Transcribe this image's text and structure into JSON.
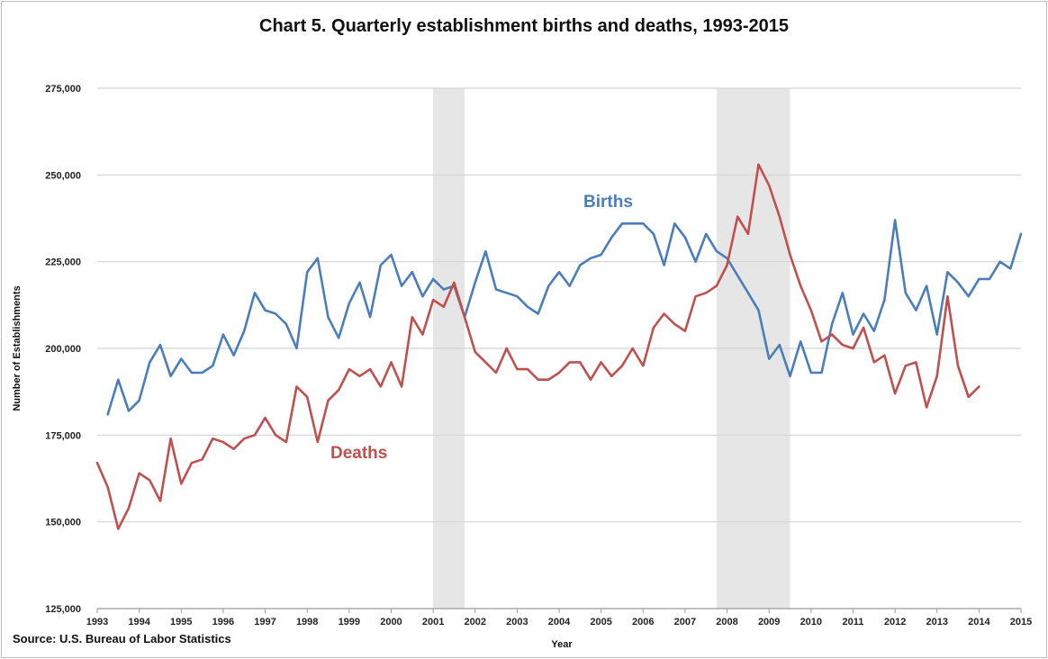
{
  "chart_data": {
    "type": "line",
    "title": "Chart 5. Quarterly establishment births and deaths, 1993-2015",
    "source": "Source: U.S. Bureau of Labor Statistics",
    "xlabel": "Year",
    "ylabel": "Number of Establishments",
    "ylim": [
      125000,
      275000
    ],
    "yticks": [
      125000,
      150000,
      175000,
      200000,
      225000,
      250000,
      275000
    ],
    "ytick_labels": [
      "125,000",
      "150,000",
      "175,000",
      "200,000",
      "225,000",
      "250,000",
      "275,000"
    ],
    "xlim": [
      1993,
      2015
    ],
    "xtick_labels": [
      "1993",
      "1994",
      "1995",
      "1996",
      "1997",
      "1998",
      "1999",
      "2000",
      "2001",
      "2002",
      "2003",
      "2004",
      "2005",
      "2006",
      "2007",
      "2008",
      "2009",
      "2010",
      "2011",
      "2012",
      "2013",
      "2014",
      "2015"
    ],
    "recessions": [
      {
        "start": 2001.0,
        "end": 2001.75
      },
      {
        "start": 2007.75,
        "end": 2009.5
      }
    ],
    "series": [
      {
        "name": "Births",
        "color": "#4a7ebb",
        "start": 1993.25,
        "step": 0.25,
        "values": [
          181000,
          191000,
          182000,
          185000,
          196000,
          201000,
          192000,
          197000,
          193000,
          193000,
          195000,
          204000,
          198000,
          205000,
          216000,
          211000,
          210000,
          207000,
          200000,
          222000,
          226000,
          209000,
          203000,
          213000,
          219000,
          209000,
          224000,
          227000,
          218000,
          222000,
          215000,
          220000,
          217000,
          218000,
          209000,
          219000,
          228000,
          217000,
          216000,
          215000,
          212000,
          210000,
          218000,
          222000,
          218000,
          224000,
          226000,
          227000,
          232000,
          236000,
          236000,
          236000,
          233000,
          224000,
          236000,
          232000,
          225000,
          233000,
          228000,
          226000,
          221000,
          216000,
          211000,
          197000,
          201000,
          192000,
          202000,
          193000,
          193000,
          207000,
          216000,
          204000,
          210000,
          205000,
          214000,
          237000,
          216000,
          211000,
          218000,
          204000,
          222000,
          219000,
          215000,
          220000,
          220000,
          225000,
          223000,
          233000
        ]
      },
      {
        "name": "Deaths",
        "color": "#c0504d",
        "start": 1993.0,
        "step": 0.25,
        "values": [
          167000,
          160000,
          148000,
          154000,
          164000,
          162000,
          156000,
          174000,
          161000,
          167000,
          168000,
          174000,
          173000,
          171000,
          174000,
          175000,
          180000,
          175000,
          173000,
          189000,
          186000,
          173000,
          185000,
          188000,
          194000,
          192000,
          194000,
          189000,
          196000,
          189000,
          209000,
          204000,
          214000,
          212000,
          219000,
          209000,
          199000,
          196000,
          193000,
          200000,
          194000,
          194000,
          191000,
          191000,
          193000,
          196000,
          196000,
          191000,
          196000,
          192000,
          195000,
          200000,
          195000,
          206000,
          210000,
          207000,
          205000,
          215000,
          216000,
          218000,
          224000,
          238000,
          233000,
          253000,
          247000,
          238000,
          227000,
          218000,
          211000,
          202000,
          204000,
          201000,
          200000,
          206000,
          196000,
          198000,
          187000,
          195000,
          196000,
          183000,
          192000,
          215000,
          195000,
          186000,
          189000
        ]
      }
    ],
    "annotations": [
      {
        "text": "Births",
        "color": "#4a7ebb"
      },
      {
        "text": "Deaths",
        "color": "#c0504d"
      }
    ]
  }
}
